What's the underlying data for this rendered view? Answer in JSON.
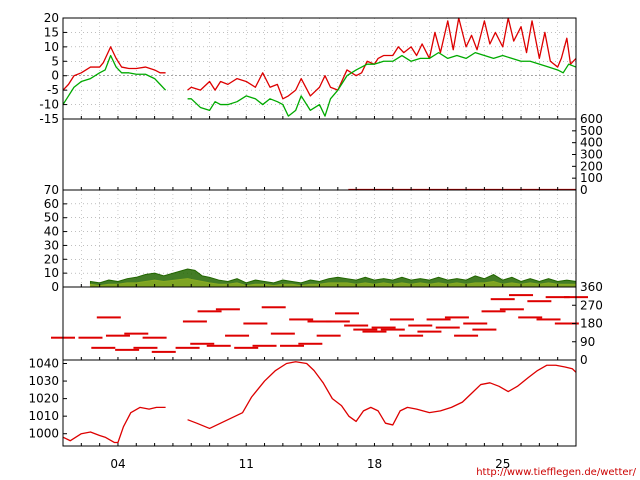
{
  "credit": "http://www.tiefflegen.de/wetter/",
  "colors": {
    "temperature": "#dd0000",
    "dewpoint": "#00aa00",
    "precipitation": "#cc0000",
    "wind_gust": "#226600",
    "wind_mean": "#88aa22",
    "wind_direction": "#dd0000",
    "pressure": "#dd0000",
    "grid": "#999999"
  },
  "chart_data": [
    {
      "type": "line",
      "title": "",
      "panel": "temperature",
      "ylim": [
        -15,
        20
      ],
      "yticks": [
        "-15",
        "-10",
        "-5",
        "0",
        "5",
        "10",
        "15",
        "20"
      ],
      "xlim": [
        1,
        29
      ],
      "grid": true,
      "series": [
        {
          "color_key": "temperature",
          "x": [
            1,
            1.3,
            1.6,
            2,
            2.5,
            3,
            3.2,
            3.6,
            3.9,
            4.2,
            4.6,
            5,
            5.5,
            6,
            6.3,
            6.6
          ],
          "y": [
            -5,
            -3,
            0,
            1,
            3,
            3,
            4.5,
            10,
            6,
            3,
            2.5,
            2.5,
            3,
            2,
            1,
            1
          ]
        },
        {
          "color_key": "temperature",
          "x": [
            7.8,
            8,
            8.5,
            9,
            9.3,
            9.6,
            10,
            10.5,
            11,
            11.5,
            11.9,
            12.3,
            12.7,
            13,
            13.3,
            13.7,
            14,
            14.5,
            15,
            15.3,
            15.6,
            16,
            16.5,
            17,
            17.3,
            17.6,
            18,
            18.2,
            18.5,
            19,
            19.3,
            19.6,
            20,
            20.3,
            20.6,
            21,
            21.3,
            21.6,
            22,
            22.3,
            22.6,
            23,
            23.3,
            23.6,
            24,
            24.3,
            24.6,
            25,
            25.3,
            25.6,
            26,
            26.3,
            26.6,
            27,
            27.3,
            27.6,
            28,
            28.2,
            28.5,
            28.7,
            29
          ],
          "y": [
            -5,
            -4,
            -5,
            -2,
            -5,
            -2,
            -3,
            -1,
            -2,
            -4,
            1,
            -4,
            -3,
            -8,
            -7,
            -5,
            -1,
            -7,
            -4,
            0,
            -4,
            -5,
            2,
            0,
            1,
            5,
            4,
            6,
            7,
            7,
            10,
            8,
            10,
            7,
            11,
            6,
            15,
            8,
            19,
            9,
            20,
            10,
            14,
            9,
            19,
            11,
            15,
            10,
            20,
            12,
            17,
            8,
            19,
            6,
            15,
            5,
            3,
            6,
            13,
            4,
            6
          ]
        },
        {
          "color_key": "dewpoint",
          "x": [
            1,
            1.3,
            1.6,
            2,
            2.5,
            3,
            3.3,
            3.6,
            3.9,
            4.2,
            4.6,
            5,
            5.5,
            6,
            6.3,
            6.6
          ],
          "y": [
            -10,
            -7,
            -4,
            -2,
            -1,
            1,
            2,
            7,
            3,
            1,
            1,
            0.5,
            0.5,
            -1,
            -3,
            -5
          ]
        },
        {
          "color_key": "dewpoint",
          "x": [
            7.8,
            8,
            8.5,
            9,
            9.3,
            9.6,
            10,
            10.5,
            11,
            11.5,
            11.9,
            12.3,
            12.7,
            13,
            13.3,
            13.7,
            14,
            14.5,
            15,
            15.3,
            15.6,
            16,
            16.5,
            17,
            17.3,
            17.6,
            18,
            18.5,
            19,
            19.5,
            20,
            20.5,
            21,
            21.5,
            22,
            22.5,
            23,
            23.5,
            24,
            24.5,
            25,
            25.5,
            26,
            26.5,
            27,
            27.5,
            28,
            28.3,
            28.6,
            29
          ],
          "y": [
            -8,
            -8,
            -11,
            -12,
            -9,
            -10,
            -10,
            -9,
            -7,
            -8,
            -10,
            -8,
            -9,
            -10,
            -14,
            -12,
            -7,
            -12,
            -10,
            -14,
            -8,
            -5,
            0,
            2,
            3,
            4,
            4,
            5,
            5,
            7,
            5,
            6,
            6,
            8,
            6,
            7,
            6,
            8,
            7,
            6,
            7,
            6,
            5,
            5,
            4,
            3,
            2,
            1,
            4,
            3
          ]
        }
      ]
    },
    {
      "type": "area",
      "title": "",
      "panel": "precipitation",
      "ylim": [
        0,
        600
      ],
      "yticks": [
        "0",
        "100",
        "200",
        "300",
        "400",
        "500",
        "600"
      ],
      "series": [
        {
          "color_key": "precipitation",
          "x": [
            16.6,
            29
          ],
          "y": [
            5,
            5
          ]
        }
      ]
    },
    {
      "type": "area",
      "title": "",
      "panel": "wind_speed",
      "ylim": [
        0,
        70
      ],
      "yticks": [
        "0",
        "10",
        "20",
        "30",
        "40",
        "50",
        "60",
        "70"
      ],
      "grid": true,
      "series": [
        {
          "color_key": "wind_gust",
          "x": [
            2.5,
            3,
            3.5,
            4,
            4.5,
            5,
            5.5,
            6,
            6.5,
            7.8,
            8.2,
            8.6,
            9,
            9.5,
            10,
            10.5,
            11,
            11.5,
            12,
            12.5,
            13,
            13.5,
            14,
            14.5,
            15,
            15.5,
            16,
            16.5,
            17,
            17.5,
            18,
            18.5,
            19,
            19.5,
            20,
            20.5,
            21,
            21.5,
            22,
            22.5,
            23,
            23.5,
            24,
            24.5,
            25,
            25.5,
            26,
            26.5,
            27,
            27.5,
            28,
            28.5,
            29
          ],
          "y": [
            4,
            3,
            5,
            4,
            6,
            7,
            9,
            10,
            8,
            13,
            12,
            8,
            7,
            5,
            4,
            6,
            3,
            5,
            4,
            3,
            5,
            4,
            3,
            5,
            4,
            6,
            7,
            6,
            5,
            7,
            5,
            6,
            5,
            7,
            5,
            6,
            5,
            7,
            5,
            6,
            5,
            8,
            6,
            9,
            5,
            7,
            4,
            6,
            4,
            6,
            4,
            5,
            4
          ]
        },
        {
          "color_key": "wind_mean",
          "x": [
            2.5,
            3,
            3.5,
            4,
            4.5,
            5,
            5.5,
            6,
            6.5,
            7.8,
            8.2,
            8.6,
            9,
            9.5,
            10,
            10.5,
            11,
            11.5,
            12,
            12.5,
            13,
            13.5,
            14,
            14.5,
            15,
            15.5,
            16,
            16.5,
            17,
            17.5,
            18,
            18.5,
            19,
            19.5,
            20,
            20.5,
            21,
            21.5,
            22,
            22.5,
            23,
            23.5,
            24,
            24.5,
            25,
            25.5,
            26,
            26.5,
            27,
            27.5,
            28,
            28.5,
            29
          ],
          "y": [
            2,
            1,
            2,
            2,
            3,
            3,
            4,
            5,
            4,
            6,
            5,
            4,
            3,
            2,
            2,
            3,
            1,
            2,
            2,
            1,
            2,
            2,
            1,
            2,
            2,
            3,
            3,
            3,
            2,
            3,
            2,
            3,
            2,
            3,
            2,
            3,
            2,
            3,
            2,
            3,
            2,
            3,
            3,
            4,
            2,
            3,
            2,
            3,
            2,
            3,
            2,
            2,
            2
          ]
        }
      ]
    },
    {
      "type": "scatter",
      "title": "",
      "panel": "wind_direction",
      "ylim": [
        0,
        360
      ],
      "yticks": [
        "0",
        "90",
        "180",
        "270",
        "360"
      ],
      "series": [
        {
          "color_key": "wind_direction",
          "x": [
            1,
            2.5,
            3.2,
            3.5,
            4,
            4.5,
            5,
            5.5,
            6,
            6.5,
            7.8,
            8.2,
            8.6,
            9,
            9.5,
            10,
            10.5,
            11,
            11.5,
            12,
            12.5,
            13,
            13.5,
            14,
            14.5,
            15,
            15.5,
            16,
            16.5,
            17,
            17.5,
            18,
            18.5,
            19,
            19.5,
            20,
            20.5,
            21,
            21.5,
            22,
            22.5,
            23,
            23.5,
            24,
            24.5,
            25,
            25.5,
            26,
            26.5,
            27,
            27.5,
            28,
            28.5,
            29
          ],
          "y": [
            110,
            110,
            60,
            210,
            120,
            50,
            130,
            60,
            110,
            40,
            60,
            190,
            80,
            240,
            70,
            250,
            120,
            60,
            180,
            70,
            260,
            130,
            70,
            200,
            80,
            190,
            120,
            190,
            230,
            170,
            150,
            140,
            160,
            150,
            200,
            120,
            170,
            140,
            200,
            160,
            210,
            120,
            180,
            150,
            240,
            300,
            250,
            320,
            210,
            290,
            200,
            310,
            180,
            310
          ]
        }
      ]
    },
    {
      "type": "line",
      "title": "",
      "panel": "pressure",
      "ylim": [
        993,
        1042
      ],
      "yticks": [
        "1000",
        "1010",
        "1020",
        "1030",
        "1040"
      ],
      "xticks": [
        {
          "label": "04",
          "x": 4
        },
        {
          "label": "11",
          "x": 11
        },
        {
          "label": "18",
          "x": 18
        },
        {
          "label": "25",
          "x": 25
        }
      ],
      "series": [
        {
          "color_key": "pressure",
          "x": [
            1,
            1.4,
            2,
            2.5,
            3,
            3.3,
            3.8,
            4,
            4.3,
            4.7,
            5.2,
            5.7,
            6.1,
            6.6
          ],
          "y": [
            998,
            996,
            1000,
            1001,
            999,
            998,
            995,
            995,
            1004,
            1012,
            1015,
            1014,
            1015,
            1015
          ]
        },
        {
          "color_key": "pressure",
          "x": [
            7.8,
            8.3,
            9,
            9.6,
            10.2,
            10.8,
            11.3,
            12,
            12.6,
            13.2,
            13.7,
            14.3,
            14.7,
            15.2,
            15.7,
            16.2,
            16.6,
            17,
            17.4,
            17.8,
            18.2,
            18.6,
            19,
            19.4,
            19.8,
            20.3,
            21,
            21.6,
            22.2,
            22.8,
            23.3,
            23.8,
            24.3,
            24.8,
            25.3,
            25.8,
            26.4,
            26.9,
            27.4,
            27.9,
            28.4,
            28.8,
            29
          ],
          "y": [
            1008,
            1006,
            1003,
            1006,
            1009,
            1012,
            1021,
            1030,
            1036,
            1040,
            1041,
            1040,
            1036,
            1029,
            1020,
            1016,
            1010,
            1007,
            1013,
            1015,
            1013,
            1006,
            1005,
            1013,
            1015,
            1014,
            1012,
            1013,
            1015,
            1018,
            1023,
            1028,
            1029,
            1027,
            1024,
            1027,
            1032,
            1036,
            1039,
            1039,
            1038,
            1037,
            1035
          ]
        }
      ]
    }
  ]
}
